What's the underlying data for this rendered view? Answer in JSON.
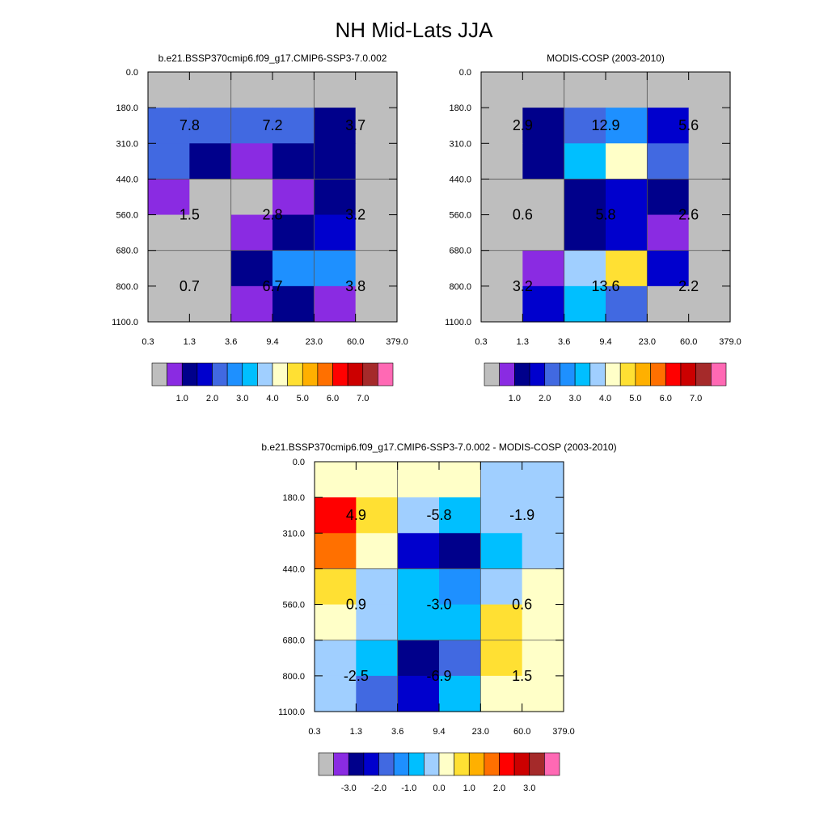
{
  "figure": {
    "title": "NH Mid-Lats JJA"
  },
  "palette": {
    "missing": "#bebebe",
    "colors": [
      "#bebebe",
      "#8a2be2",
      "#00008b",
      "#0000cd",
      "#4169e1",
      "#1e90ff",
      "#00bfff",
      "#a0cfff",
      "#ffffc8",
      "#ffe033",
      "#ffb000",
      "#ff7000",
      "#ff0000",
      "#cc0000",
      "#a52a2a",
      "#ff69b4"
    ]
  },
  "chart_data": [
    {
      "type": "heatmap",
      "title": "b.e21.BSSP370cmip6.f09_g17.CMIP6-SSP3-7.0.002",
      "x_ticks": [
        "0.3",
        "1.3",
        "3.6",
        "9.4",
        "23.0",
        "60.0",
        "379.0"
      ],
      "y_ticks": [
        "0.0",
        "180.0",
        "310.0",
        "440.0",
        "560.0",
        "680.0",
        "800.0",
        "1100.0"
      ],
      "cells": [
        [
          0,
          0,
          0,
          0,
          0,
          0
        ],
        [
          4,
          4,
          4,
          4,
          2,
          0
        ],
        [
          4,
          2,
          1,
          2,
          2,
          0
        ],
        [
          1,
          0,
          0,
          1,
          2,
          0
        ],
        [
          0,
          0,
          1,
          2,
          3,
          0
        ],
        [
          0,
          0,
          2,
          5,
          5,
          0
        ],
        [
          0,
          0,
          1,
          2,
          1,
          0
        ]
      ],
      "labels": [
        {
          "row": 1,
          "col": 1,
          "text": "7.8"
        },
        {
          "row": 1,
          "col": 3,
          "text": "7.2"
        },
        {
          "row": 1,
          "col": 5,
          "text": "3.7"
        },
        {
          "row": 4,
          "col": 1,
          "text": "1.5"
        },
        {
          "row": 4,
          "col": 3,
          "text": "2.8"
        },
        {
          "row": 4,
          "col": 5,
          "text": "3.2"
        },
        {
          "row": 6,
          "col": 1,
          "text": "0.7"
        },
        {
          "row": 6,
          "col": 3,
          "text": "6.7"
        },
        {
          "row": 6,
          "col": 5,
          "text": "3.8"
        }
      ],
      "colorbar": {
        "labels": [
          {
            "text": "1.0",
            "boundary": 2
          },
          {
            "text": "2.0",
            "boundary": 4
          },
          {
            "text": "3.0",
            "boundary": 6
          },
          {
            "text": "4.0",
            "boundary": 8
          },
          {
            "text": "5.0",
            "boundary": 10
          },
          {
            "text": "6.0",
            "boundary": 12
          },
          {
            "text": "7.0",
            "boundary": 14
          }
        ]
      }
    },
    {
      "type": "heatmap",
      "title": "MODIS-COSP (2003-2010)",
      "x_ticks": [
        "0.3",
        "1.3",
        "3.6",
        "9.4",
        "23.0",
        "60.0",
        "379.0"
      ],
      "y_ticks": [
        "0.0",
        "180.0",
        "310.0",
        "440.0",
        "560.0",
        "680.0",
        "800.0",
        "1100.0"
      ],
      "cells": [
        [
          0,
          0,
          0,
          0,
          0,
          0
        ],
        [
          0,
          2,
          4,
          5,
          3,
          0
        ],
        [
          0,
          2,
          6,
          8,
          4,
          0
        ],
        [
          0,
          0,
          2,
          3,
          2,
          0
        ],
        [
          0,
          0,
          2,
          3,
          1,
          0
        ],
        [
          0,
          1,
          7,
          9,
          3,
          0
        ],
        [
          0,
          3,
          6,
          4,
          0,
          0
        ]
      ],
      "labels": [
        {
          "row": 1,
          "col": 1,
          "text": "2.9"
        },
        {
          "row": 1,
          "col": 3,
          "text": "12.9"
        },
        {
          "row": 1,
          "col": 5,
          "text": "5.6"
        },
        {
          "row": 4,
          "col": 1,
          "text": "0.6"
        },
        {
          "row": 4,
          "col": 3,
          "text": "5.8"
        },
        {
          "row": 4,
          "col": 5,
          "text": "2.6"
        },
        {
          "row": 6,
          "col": 1,
          "text": "3.2"
        },
        {
          "row": 6,
          "col": 3,
          "text": "13.6"
        },
        {
          "row": 6,
          "col": 5,
          "text": "2.2"
        }
      ],
      "colorbar": {
        "labels": [
          {
            "text": "1.0",
            "boundary": 2
          },
          {
            "text": "2.0",
            "boundary": 4
          },
          {
            "text": "3.0",
            "boundary": 6
          },
          {
            "text": "4.0",
            "boundary": 8
          },
          {
            "text": "5.0",
            "boundary": 10
          },
          {
            "text": "6.0",
            "boundary": 12
          },
          {
            "text": "7.0",
            "boundary": 14
          }
        ]
      }
    },
    {
      "type": "heatmap",
      "title": "b.e21.BSSP370cmip6.f09_g17.CMIP6-SSP3-7.0.002 - MODIS-COSP (2003-2010)",
      "x_ticks": [
        "0.3",
        "1.3",
        "3.6",
        "9.4",
        "23.0",
        "60.0",
        "379.0"
      ],
      "y_ticks": [
        "0.0",
        "180.0",
        "310.0",
        "440.0",
        "560.0",
        "680.0",
        "800.0",
        "1100.0"
      ],
      "cells": [
        [
          8,
          8,
          8,
          8,
          7,
          7
        ],
        [
          12,
          9,
          7,
          6,
          7,
          7
        ],
        [
          11,
          8,
          3,
          2,
          6,
          7
        ],
        [
          9,
          7,
          6,
          5,
          7,
          8
        ],
        [
          8,
          7,
          6,
          6,
          9,
          8
        ],
        [
          7,
          6,
          2,
          4,
          9,
          8
        ],
        [
          7,
          4,
          3,
          6,
          8,
          8
        ]
      ],
      "labels": [
        {
          "row": 1,
          "col": 1,
          "text": "4.9"
        },
        {
          "row": 1,
          "col": 3,
          "text": "-5.8"
        },
        {
          "row": 1,
          "col": 5,
          "text": "-1.9"
        },
        {
          "row": 4,
          "col": 1,
          "text": "0.9"
        },
        {
          "row": 4,
          "col": 3,
          "text": "-3.0"
        },
        {
          "row": 4,
          "col": 5,
          "text": "0.6"
        },
        {
          "row": 6,
          "col": 1,
          "text": "-2.5"
        },
        {
          "row": 6,
          "col": 3,
          "text": "-6.9"
        },
        {
          "row": 6,
          "col": 5,
          "text": "1.5"
        }
      ],
      "colorbar": {
        "labels": [
          {
            "text": "-3.0",
            "boundary": 2
          },
          {
            "text": "-2.0",
            "boundary": 4
          },
          {
            "text": "-1.0",
            "boundary": 6
          },
          {
            "text": "0.0",
            "boundary": 8
          },
          {
            "text": "1.0",
            "boundary": 10
          },
          {
            "text": "2.0",
            "boundary": 12
          },
          {
            "text": "3.0",
            "boundary": 14
          }
        ]
      }
    }
  ]
}
